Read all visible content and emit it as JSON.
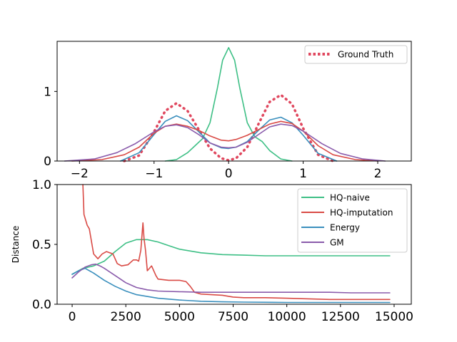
{
  "chart_data": [
    {
      "type": "line",
      "title": "",
      "xlabel": "",
      "ylabel": "",
      "xlim": [
        -2.3,
        2.45
      ],
      "ylim": [
        0,
        1.72
      ],
      "x_ticks": [
        "−2",
        "−1",
        "0",
        "1",
        "2"
      ],
      "y_ticks": [
        "0",
        "1"
      ],
      "legend": {
        "placement": "top-right",
        "entries": [
          "Ground Truth"
        ]
      },
      "grid": false,
      "series": [
        {
          "name": "Ground Truth",
          "color": "#e0475e",
          "style": "dotted",
          "x": [
            -1.4,
            -1.2,
            -1.0,
            -0.85,
            -0.7,
            -0.55,
            -0.4,
            -0.25,
            -0.1,
            0,
            0.1,
            0.25,
            0.4,
            0.55,
            0.7,
            0.85,
            1.0,
            1.2,
            1.4
          ],
          "y": [
            0,
            0.08,
            0.42,
            0.72,
            0.83,
            0.72,
            0.45,
            0.18,
            0.04,
            0.01,
            0.04,
            0.2,
            0.53,
            0.85,
            0.95,
            0.82,
            0.47,
            0.09,
            0
          ]
        },
        {
          "color": "#3dbf85",
          "style": "solid",
          "x": [
            -0.85,
            -0.7,
            -0.55,
            -0.45,
            -0.35,
            -0.25,
            -0.15,
            -0.08,
            0,
            0.08,
            0.15,
            0.25,
            0.35,
            0.45,
            0.55,
            0.7,
            0.85
          ],
          "y": [
            0,
            0.02,
            0.12,
            0.22,
            0.32,
            0.55,
            1.05,
            1.45,
            1.63,
            1.45,
            1.05,
            0.55,
            0.35,
            0.28,
            0.15,
            0.03,
            0
          ]
        },
        {
          "color": "#3a8fbd",
          "style": "solid",
          "x": [
            -1.45,
            -1.2,
            -1.0,
            -0.85,
            -0.7,
            -0.55,
            -0.4,
            -0.25,
            -0.1,
            0,
            0.1,
            0.25,
            0.4,
            0.55,
            0.7,
            0.85,
            1.0,
            1.2,
            1.45
          ],
          "y": [
            0,
            0.12,
            0.38,
            0.57,
            0.65,
            0.58,
            0.42,
            0.26,
            0.19,
            0.18,
            0.2,
            0.28,
            0.44,
            0.59,
            0.63,
            0.55,
            0.37,
            0.11,
            0
          ]
        },
        {
          "color": "#d94a45",
          "style": "solid",
          "x": [
            -2.1,
            -1.7,
            -1.4,
            -1.2,
            -1.0,
            -0.85,
            -0.7,
            -0.55,
            -0.4,
            -0.25,
            -0.1,
            0,
            0.1,
            0.25,
            0.4,
            0.55,
            0.7,
            0.85,
            1.0,
            1.2,
            1.4,
            1.7,
            2.0
          ],
          "y": [
            0,
            0.02,
            0.09,
            0.2,
            0.4,
            0.5,
            0.53,
            0.5,
            0.44,
            0.36,
            0.3,
            0.29,
            0.31,
            0.37,
            0.45,
            0.53,
            0.57,
            0.54,
            0.43,
            0.22,
            0.09,
            0.02,
            0
          ]
        },
        {
          "color": "#8a5bab",
          "style": "solid",
          "x": [
            -2.2,
            -1.8,
            -1.5,
            -1.25,
            -1.0,
            -0.85,
            -0.7,
            -0.55,
            -0.4,
            -0.25,
            -0.1,
            0,
            0.1,
            0.25,
            0.4,
            0.55,
            0.7,
            0.85,
            1.0,
            1.25,
            1.5,
            1.8,
            2.1
          ],
          "y": [
            0,
            0.03,
            0.12,
            0.25,
            0.42,
            0.5,
            0.52,
            0.48,
            0.38,
            0.26,
            0.2,
            0.19,
            0.2,
            0.27,
            0.38,
            0.49,
            0.53,
            0.51,
            0.43,
            0.25,
            0.11,
            0.03,
            0
          ]
        }
      ]
    },
    {
      "type": "line",
      "title": "",
      "xlabel": "",
      "ylabel": "Distance",
      "xlim": [
        -700,
        15800
      ],
      "ylim": [
        0,
        1.0
      ],
      "x_ticks": [
        "0",
        "2500",
        "5000",
        "7500",
        "10000",
        "12500",
        "15000"
      ],
      "y_ticks": [
        "0.0",
        "0.5",
        "1.0"
      ],
      "legend": {
        "placement": "top-right",
        "entries": [
          "HQ-naive",
          "HQ-imputation",
          "Energy",
          "GM"
        ]
      },
      "grid": false,
      "series": [
        {
          "name": "HQ-naive",
          "color": "#3dbf85",
          "x": [
            0,
            500,
            1000,
            1500,
            2000,
            2500,
            3000,
            3500,
            4000,
            4500,
            5000,
            6000,
            7000,
            8000,
            9000,
            10000,
            12000,
            14800
          ],
          "y": [
            0.25,
            0.3,
            0.32,
            0.36,
            0.44,
            0.51,
            0.54,
            0.54,
            0.52,
            0.49,
            0.46,
            0.43,
            0.415,
            0.41,
            0.405,
            0.405,
            0.405,
            0.405
          ]
        },
        {
          "name": "HQ-imputation",
          "color": "#d94a45",
          "x": [
            500,
            550,
            700,
            800,
            1000,
            1200,
            1400,
            1600,
            1900,
            2100,
            2300,
            2600,
            2850,
            3000,
            3100,
            3200,
            3300,
            3350,
            3420,
            3500,
            3600,
            3700,
            3900,
            4000,
            4500,
            5000,
            5300,
            5500,
            5700,
            6000,
            6500,
            7000,
            7500,
            8000,
            9000,
            10000,
            11000,
            12000,
            13000,
            14800
          ],
          "y": [
            1.0,
            0.75,
            0.66,
            0.63,
            0.42,
            0.38,
            0.42,
            0.44,
            0.42,
            0.34,
            0.32,
            0.33,
            0.37,
            0.37,
            0.36,
            0.45,
            0.68,
            0.55,
            0.45,
            0.28,
            0.3,
            0.32,
            0.24,
            0.21,
            0.2,
            0.2,
            0.19,
            0.15,
            0.1,
            0.085,
            0.08,
            0.075,
            0.06,
            0.055,
            0.055,
            0.05,
            0.045,
            0.04,
            0.04,
            0.04
          ]
        },
        {
          "name": "Energy",
          "color": "#3a8fbd",
          "x": [
            0,
            300,
            600,
            1000,
            1500,
            2000,
            2500,
            3000,
            4000,
            5000,
            6000,
            7000,
            8000,
            10000,
            12000,
            14800
          ],
          "y": [
            0.25,
            0.28,
            0.3,
            0.26,
            0.2,
            0.15,
            0.11,
            0.08,
            0.05,
            0.035,
            0.025,
            0.02,
            0.018,
            0.015,
            0.015,
            0.015
          ]
        },
        {
          "name": "GM",
          "color": "#8a5bab",
          "x": [
            0,
            300,
            600,
            900,
            1100,
            1300,
            1500,
            2000,
            2500,
            3000,
            3500,
            4000,
            5000,
            6000,
            7000,
            8000,
            9000,
            10000,
            11000,
            12000,
            13000,
            14000,
            14800
          ],
          "y": [
            0.22,
            0.27,
            0.31,
            0.33,
            0.335,
            0.32,
            0.3,
            0.24,
            0.18,
            0.14,
            0.12,
            0.11,
            0.105,
            0.1,
            0.1,
            0.1,
            0.1,
            0.1,
            0.1,
            0.1,
            0.095,
            0.095,
            0.095
          ]
        }
      ]
    }
  ]
}
